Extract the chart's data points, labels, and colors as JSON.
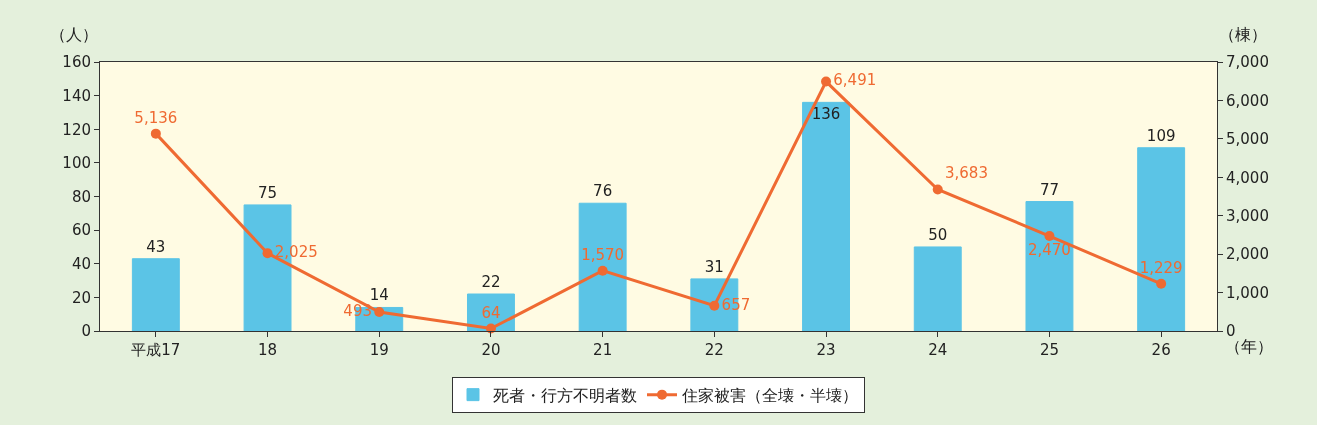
{
  "chart_data": {
    "type": "bar",
    "categories": [
      "平成17",
      "18",
      "19",
      "20",
      "21",
      "22",
      "23",
      "24",
      "25",
      "26"
    ],
    "xlabel": "（年）",
    "ylabel": "（人）",
    "y2label": "（棟）",
    "series": [
      {
        "name": "死者・行方不明者数",
        "color": "#5bc4e6",
        "values": [
          43,
          75,
          14,
          22,
          76,
          31,
          136,
          50,
          77,
          109
        ]
      },
      {
        "name": "住家被害（全壊・半壊）",
        "type": "line",
        "axis": "y2",
        "color": "#ef6a32",
        "marker": "circle",
        "values": [
          5136,
          2025,
          493,
          64,
          1570,
          657,
          6491,
          3683,
          2470,
          1229
        ],
        "value_labels": [
          "5,136",
          "2,025",
          "493",
          "64",
          "1,570",
          "657",
          "6,491",
          "3,683",
          "2,470",
          "1,229"
        ]
      }
    ],
    "ylim": [
      0,
      160
    ],
    "yticks": [
      0,
      20,
      40,
      60,
      80,
      100,
      120,
      140,
      160
    ],
    "y2lim": [
      0,
      7000
    ],
    "y2ticks": [
      {
        "value": 0,
        "label": "0"
      },
      {
        "value": 1000,
        "label": "1,000"
      },
      {
        "value": 2000,
        "label": "2,000"
      },
      {
        "value": 3000,
        "label": "3,000"
      },
      {
        "value": 4000,
        "label": "4,000"
      },
      {
        "value": 5000,
        "label": "5,000"
      },
      {
        "value": 6000,
        "label": "6,000"
      },
      {
        "value": 7000,
        "label": "7,000"
      }
    ],
    "data_labels": true,
    "grid": false,
    "legend": "bottom"
  }
}
